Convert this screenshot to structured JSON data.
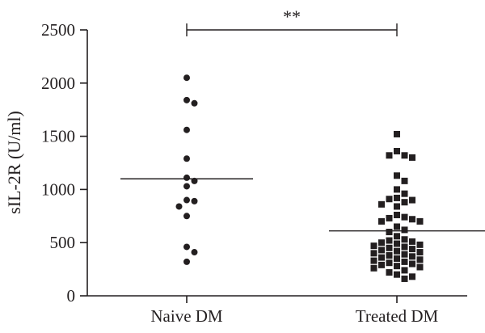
{
  "chart_data": {
    "type": "scatter",
    "title": "",
    "xlabel": "",
    "ylabel": "sIL-2R (U/ml)",
    "ylim": [
      0,
      2500
    ],
    "yticks": [
      0,
      500,
      1000,
      1500,
      2000,
      2500
    ],
    "categories": [
      "Naive DM",
      "Treated DM"
    ],
    "grid": false,
    "significance": {
      "between": [
        "Naive DM",
        "Treated DM"
      ],
      "label": "**"
    },
    "series": [
      {
        "category": "Naive DM",
        "marker": "circle",
        "mean": 1100,
        "values": [
          2050,
          1840,
          1810,
          1560,
          1290,
          1110,
          1080,
          1030,
          900,
          890,
          840,
          750,
          460,
          410,
          320
        ]
      },
      {
        "category": "Treated DM",
        "marker": "square",
        "mean": 610,
        "values": [
          1520,
          1360,
          1320,
          1320,
          1300,
          1130,
          1080,
          1000,
          960,
          920,
          910,
          900,
          880,
          860,
          840,
          760,
          740,
          730,
          720,
          700,
          700,
          650,
          620,
          600,
          560,
          530,
          520,
          510,
          500,
          490,
          480,
          470,
          460,
          450,
          440,
          430,
          420,
          410,
          400,
          390,
          380,
          370,
          360,
          350,
          340,
          330,
          320,
          310,
          300,
          290,
          280,
          270,
          260,
          240,
          220,
          200,
          180,
          160
        ]
      }
    ]
  },
  "colors": {
    "ink": "#231f20",
    "background": "#ffffff"
  }
}
